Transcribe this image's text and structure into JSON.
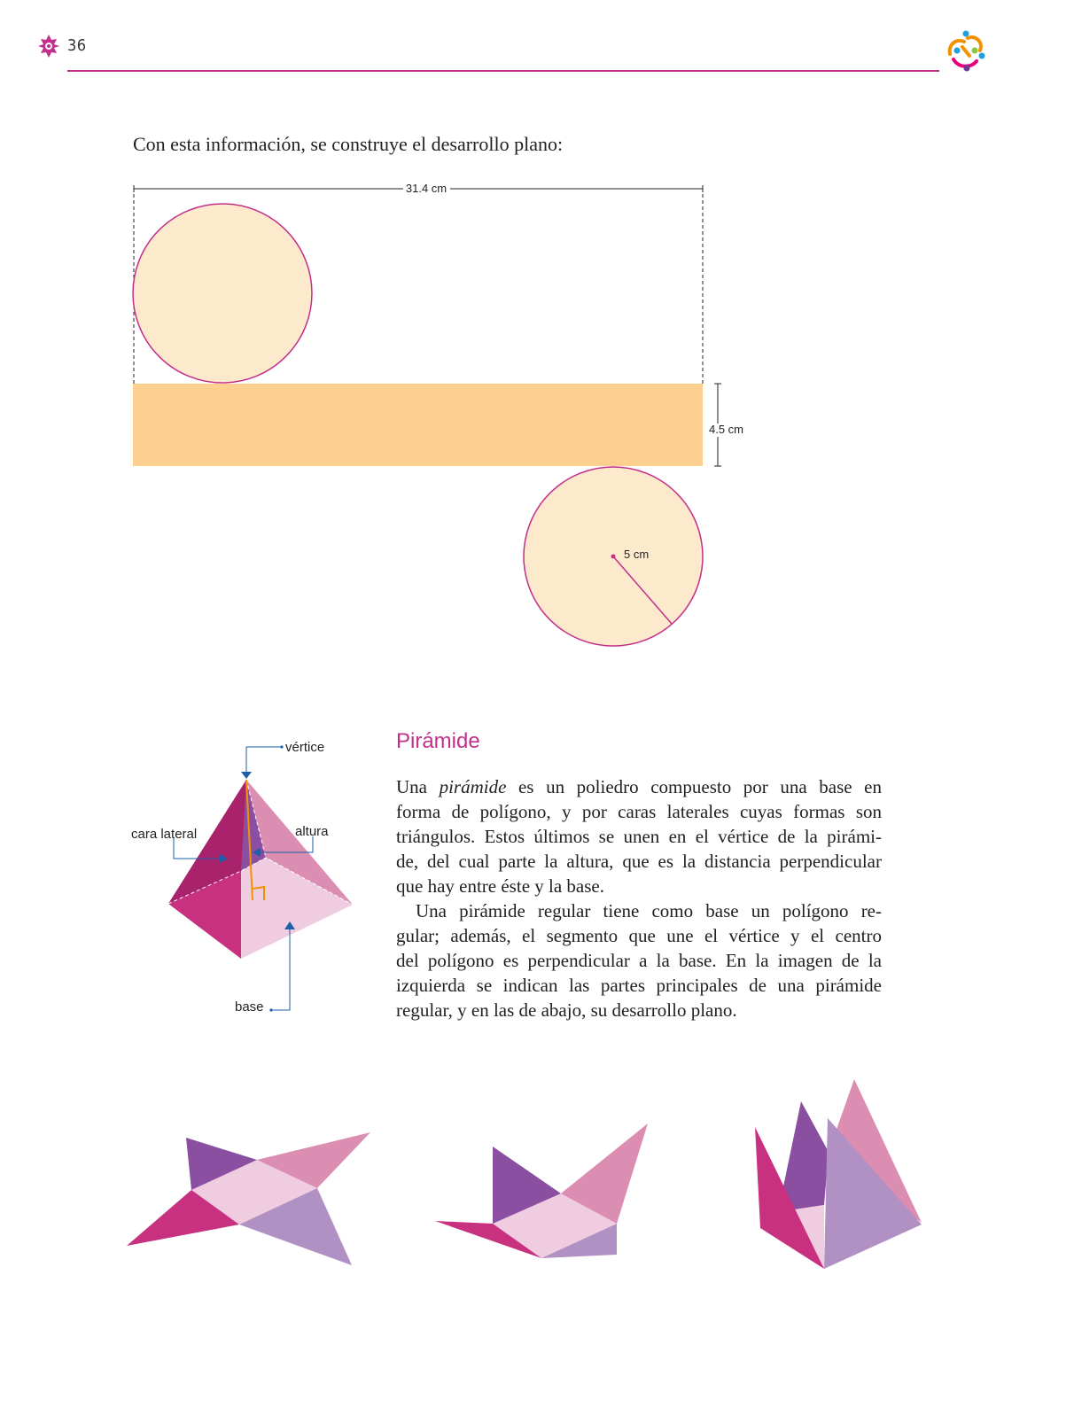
{
  "page": {
    "number": "36"
  },
  "intro": "Con esta información, se construye el desarrollo plano:",
  "cylinder_net": {
    "width_label": "31.4 cm",
    "height_label": "4.5 cm",
    "radius_label": "5 cm"
  },
  "pyramid_diagram": {
    "labels": {
      "vertex": "vértice",
      "lateral_face": "cara lateral",
      "height": "altura",
      "base": "base"
    }
  },
  "section": {
    "title": "Pirámide",
    "p1_lines": [
      {
        "pre": "Una ",
        "em": "pirámide",
        "post": " es un poliedro compuesto por una base en"
      },
      "forma de polígono, y por caras laterales cuyas formas son",
      "triángulos. Estos últimos se unen en el vértice de la pirámi-",
      "de, del cual parte la altura, que es la distancia perpendicular",
      "que hay entre éste y la base."
    ],
    "p2_lines": [
      "Una pirámide regular tiene como base un polígono re-",
      "gular; además, el segmento que une el vértice y el centro",
      "del polígono es perpendicular a la base. En la imagen de la",
      "izquierda se indican las partes principales de una pirámide",
      "regular, y en las de abajo, su desarrollo plano."
    ]
  },
  "colors": {
    "accent": "#c2308c",
    "circle_fill": "#fde9cc",
    "rect_fill": "#fdd08f",
    "face_magenta": "#c83080",
    "face_purple": "#8a4fa0",
    "face_pink": "#db8db2",
    "face_lavender": "#b190c4",
    "base_pink": "#f0cce0"
  }
}
